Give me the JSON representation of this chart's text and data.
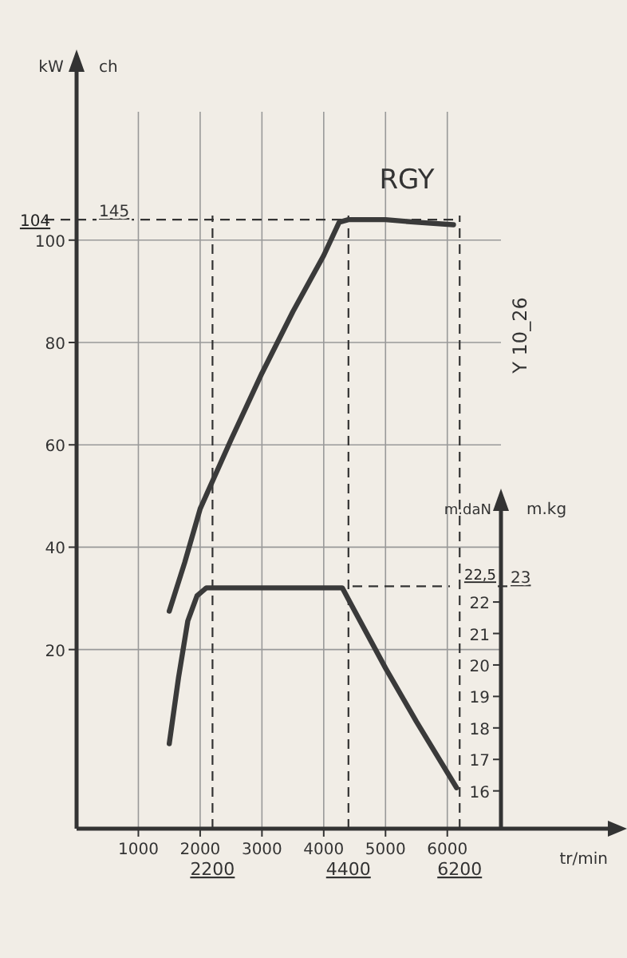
{
  "chart_data": {
    "type": "line",
    "title": "RGY",
    "xlabel": "tr/min",
    "ylabel": "kW",
    "y2label": "m.daN",
    "annotations": [
      "ch",
      "m.kg",
      "145",
      "23",
      "Y 10_26"
    ],
    "x": [
      1500,
      1750,
      2000,
      2500,
      3000,
      3500,
      4000,
      4250,
      4400,
      5000,
      5500,
      6100
    ],
    "series": [
      {
        "color": "#3a3a3a",
        "values": [
          27.5,
          37,
          47.5,
          61,
          74,
          86,
          97,
          103.5,
          104,
          104,
          103.5,
          103
        ]
      },
      {
        "color": "#3a3a3a",
        "axis": "y2",
        "x": [
          1500,
          1650,
          1800,
          1950,
          2100,
          3000,
          4300,
          4450,
          5000,
          5500,
          6150
        ],
        "values": [
          17.5,
          19.6,
          21.4,
          22.2,
          22.45,
          22.45,
          22.45,
          21.9,
          19.9,
          18.2,
          16.1
        ]
      }
    ],
    "xlim": [
      0,
      8650
    ],
    "xticks": [
      1000,
      2000,
      3000,
      4000,
      5000,
      6000
    ],
    "ylim": [
      -15,
      136
    ],
    "yticks": [
      20,
      40,
      60,
      80,
      100
    ],
    "y2lim": [
      14.8,
      25.4
    ],
    "y2ticks": [
      16,
      17,
      18,
      19,
      20,
      21,
      22
    ],
    "ref_lines": [
      {
        "axis": "y",
        "value": 104,
        "label": "104",
        "line_style": "dashed"
      },
      {
        "axis": "y2",
        "value": 22.5,
        "label": "22,5",
        "line_style": "dashed"
      },
      {
        "axis": "x",
        "value": 2200,
        "label": "2200",
        "line_style": "dashed"
      },
      {
        "axis": "x",
        "value": 4400,
        "label": "4400",
        "line_style": "dashed"
      },
      {
        "axis": "x",
        "value": 6200,
        "label": "6200",
        "line_style": "dashed"
      }
    ],
    "grid": true,
    "legend": false,
    "marker": "none",
    "line_style": "solid"
  }
}
